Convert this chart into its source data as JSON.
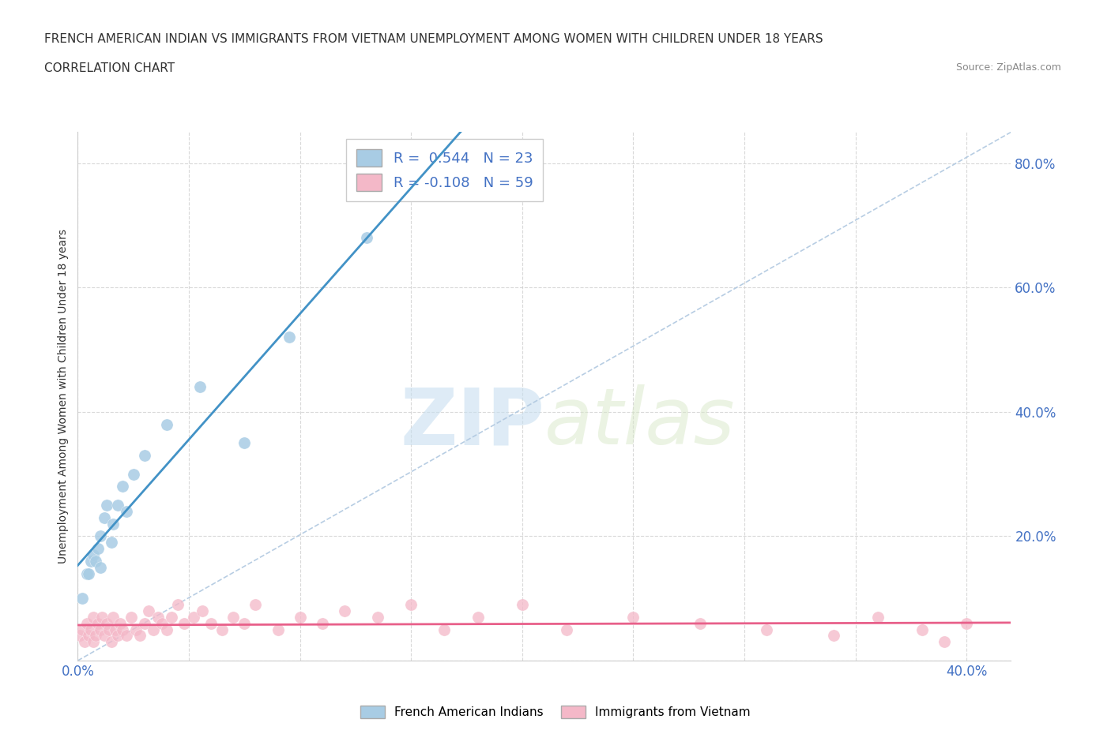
{
  "title_line1": "FRENCH AMERICAN INDIAN VS IMMIGRANTS FROM VIETNAM UNEMPLOYMENT AMONG WOMEN WITH CHILDREN UNDER 18 YEARS",
  "title_line2": "CORRELATION CHART",
  "source": "Source: ZipAtlas.com",
  "ylabel": "Unemployment Among Women with Children Under 18 years",
  "xlim": [
    0.0,
    0.42
  ],
  "ylim": [
    0.0,
    0.85
  ],
  "x_ticks": [
    0.0,
    0.05,
    0.1,
    0.15,
    0.2,
    0.25,
    0.3,
    0.35,
    0.4
  ],
  "y_ticks": [
    0.0,
    0.2,
    0.4,
    0.6,
    0.8
  ],
  "watermark_zip": "ZIP",
  "watermark_atlas": "atlas",
  "legend_r1": "R =  0.544",
  "legend_n1": "N = 23",
  "legend_r2": "R = -0.108",
  "legend_n2": "N = 59",
  "color_blue": "#a8cce4",
  "color_pink": "#f4b8c8",
  "trend_blue": "#4292c6",
  "trend_pink": "#e8608a",
  "diag_color": "#b0c8e0",
  "blue_x": [
    0.002,
    0.004,
    0.005,
    0.006,
    0.007,
    0.008,
    0.009,
    0.01,
    0.01,
    0.012,
    0.013,
    0.015,
    0.016,
    0.018,
    0.02,
    0.022,
    0.025,
    0.03,
    0.04,
    0.055,
    0.075,
    0.095,
    0.13
  ],
  "blue_y": [
    0.1,
    0.14,
    0.14,
    0.16,
    0.17,
    0.16,
    0.18,
    0.15,
    0.2,
    0.23,
    0.25,
    0.19,
    0.22,
    0.25,
    0.28,
    0.24,
    0.3,
    0.33,
    0.38,
    0.44,
    0.35,
    0.52,
    0.68
  ],
  "pink_x": [
    0.001,
    0.002,
    0.003,
    0.004,
    0.005,
    0.006,
    0.007,
    0.007,
    0.008,
    0.009,
    0.01,
    0.011,
    0.012,
    0.013,
    0.014,
    0.015,
    0.016,
    0.017,
    0.018,
    0.019,
    0.02,
    0.022,
    0.024,
    0.026,
    0.028,
    0.03,
    0.032,
    0.034,
    0.036,
    0.038,
    0.04,
    0.042,
    0.045,
    0.048,
    0.052,
    0.056,
    0.06,
    0.065,
    0.07,
    0.075,
    0.08,
    0.09,
    0.1,
    0.11,
    0.12,
    0.135,
    0.15,
    0.165,
    0.18,
    0.2,
    0.22,
    0.25,
    0.28,
    0.31,
    0.34,
    0.36,
    0.38,
    0.39,
    0.4
  ],
  "pink_y": [
    0.04,
    0.05,
    0.03,
    0.06,
    0.04,
    0.05,
    0.03,
    0.07,
    0.04,
    0.06,
    0.05,
    0.07,
    0.04,
    0.06,
    0.05,
    0.03,
    0.07,
    0.05,
    0.04,
    0.06,
    0.05,
    0.04,
    0.07,
    0.05,
    0.04,
    0.06,
    0.08,
    0.05,
    0.07,
    0.06,
    0.05,
    0.07,
    0.09,
    0.06,
    0.07,
    0.08,
    0.06,
    0.05,
    0.07,
    0.06,
    0.09,
    0.05,
    0.07,
    0.06,
    0.08,
    0.07,
    0.09,
    0.05,
    0.07,
    0.09,
    0.05,
    0.07,
    0.06,
    0.05,
    0.04,
    0.07,
    0.05,
    0.03,
    0.06
  ]
}
